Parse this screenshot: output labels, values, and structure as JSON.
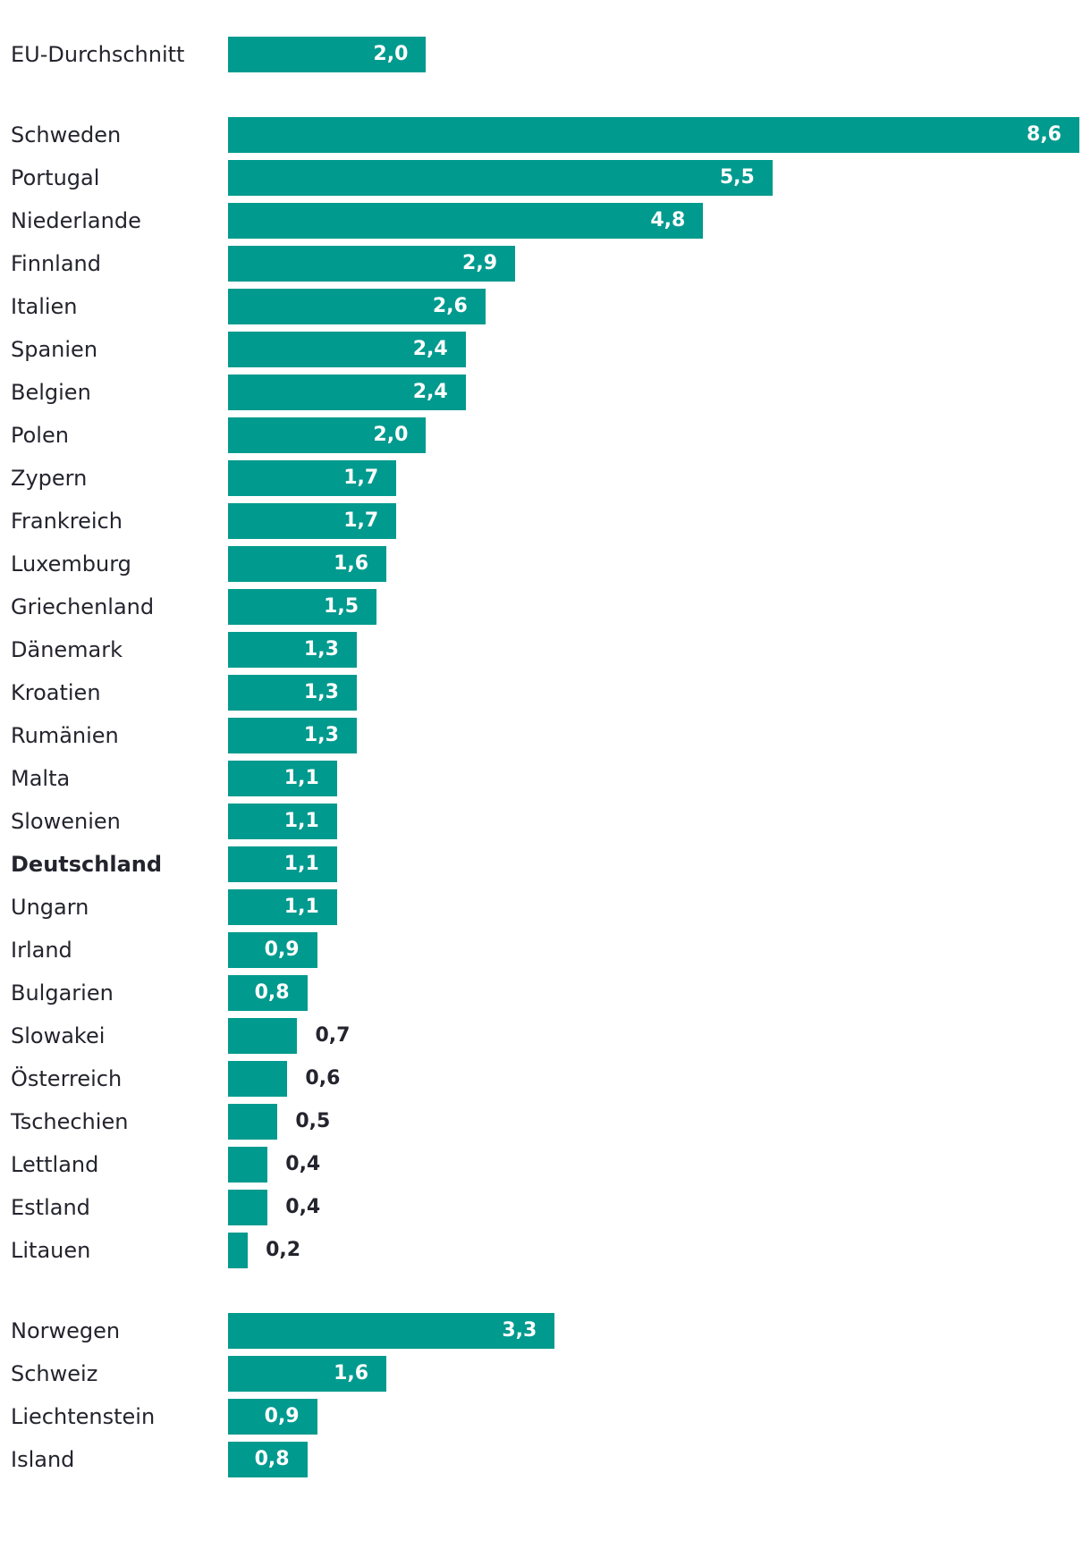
{
  "chart_data": {
    "type": "bar",
    "orientation": "horizontal",
    "title": "",
    "xlabel": "",
    "ylabel": "",
    "xlim": [
      0,
      8.6
    ],
    "grid": false,
    "bar_color": "#009a8e",
    "groups": [
      {
        "categories": [
          "EU-Durchschnitt"
        ],
        "values": [
          2.0
        ],
        "labels": [
          "2,0"
        ]
      },
      {
        "categories": [
          "Schweden",
          "Portugal",
          "Niederlande",
          "Finnland",
          "Italien",
          "Spanien",
          "Belgien",
          "Polen",
          "Zypern",
          "Frankreich",
          "Luxemburg",
          "Griechenland",
          "Dänemark",
          "Kroatien",
          "Rumänien",
          "Malta",
          "Slowenien",
          "Deutschland",
          "Ungarn",
          "Irland",
          "Bulgarien",
          "Slowakei",
          "Österreich",
          "Tschechien",
          "Lettland",
          "Estland",
          "Litauen"
        ],
        "values": [
          8.6,
          5.5,
          4.8,
          2.9,
          2.6,
          2.4,
          2.4,
          2.0,
          1.7,
          1.7,
          1.6,
          1.5,
          1.3,
          1.3,
          1.3,
          1.1,
          1.1,
          1.1,
          1.1,
          0.9,
          0.8,
          0.7,
          0.6,
          0.5,
          0.4,
          0.4,
          0.2
        ],
        "labels": [
          "8,6",
          "5,5",
          "4,8",
          "2,9",
          "2,6",
          "2,4",
          "2,4",
          "2,0",
          "1,7",
          "1,7",
          "1,6",
          "1,5",
          "1,3",
          "1,3",
          "1,3",
          "1,1",
          "1,1",
          "1,1",
          "1,1",
          "0,9",
          "0,8",
          "0,7",
          "0,6",
          "0,5",
          "0,4",
          "0,4",
          "0,2"
        ]
      },
      {
        "categories": [
          "Norwegen",
          "Schweiz",
          "Liechtenstein",
          "Island"
        ],
        "values": [
          3.3,
          1.6,
          0.9,
          0.8
        ],
        "labels": [
          "3,3",
          "1,6",
          "0,9",
          "0,8"
        ]
      }
    ],
    "highlight": "Deutschland"
  }
}
